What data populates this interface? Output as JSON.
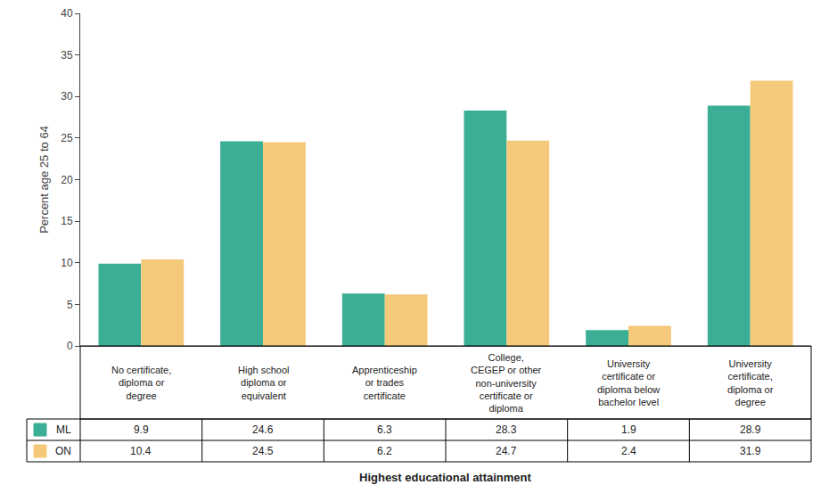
{
  "chart_data": {
    "type": "bar",
    "categories": [
      "No certificate,\ndiploma or\ndegree",
      "High school\ndiploma or\nequivalent",
      "Apprenticeship\nor trades\ncertificate",
      "College,\nCEGEP or other\nnon-university\ncertificate or\ndiploma",
      "University\ncertificate or\ndiploma below\nbachelor level",
      "University\ncertificate,\ndiploma or\ndegree"
    ],
    "series": [
      {
        "name": "ML",
        "color": "#3aaf96",
        "values": [
          9.9,
          24.6,
          6.3,
          28.3,
          1.9,
          28.9
        ]
      },
      {
        "name": "ON",
        "color": "#f5c97a",
        "values": [
          10.4,
          24.5,
          6.2,
          24.7,
          2.4,
          31.9
        ]
      }
    ],
    "ylabel": "Percent age 25 to 64",
    "xlabel": "Highest educational attainment",
    "ylim": [
      0,
      40
    ],
    "yticks": [
      0,
      5,
      10,
      15,
      20,
      25,
      30,
      35,
      40
    ],
    "grid": false
  }
}
